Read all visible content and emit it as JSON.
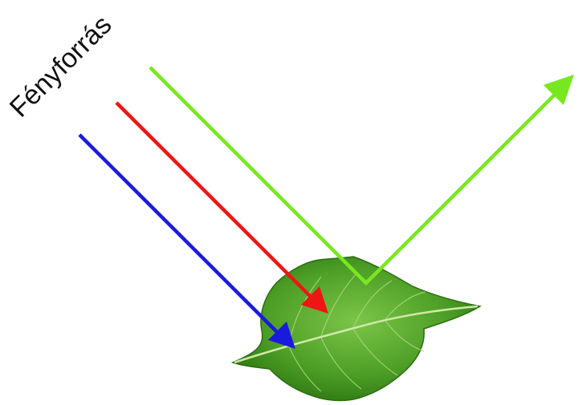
{
  "labels": {
    "light_source": "Fényforrás"
  },
  "colors": {
    "blue_ray": "#1a1adf",
    "red_ray": "#ee1515",
    "green_ray": "#77e81f",
    "leaf_dark": "#2f7a14",
    "leaf_mid": "#52a52a",
    "leaf_light": "#8fcf5a",
    "vein": "#c9e8a0"
  },
  "icons": {
    "leaf": "leaf-icon"
  }
}
